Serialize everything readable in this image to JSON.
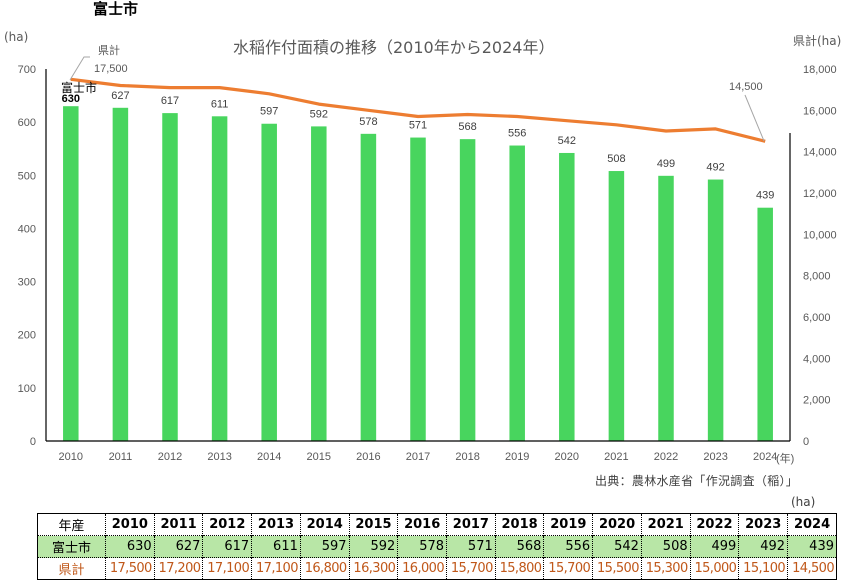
{
  "page": {
    "city_title": "富士市",
    "source": "出典：農林水産省「作況調査（稲）」",
    "table_unit": "(ha)"
  },
  "colors": {
    "bar": "#48D55E",
    "line": "#ED7D31",
    "city_row_bg": "#B8E6A6",
    "pref_text": "#C0581A"
  },
  "chart_data": {
    "type": "bar+line",
    "title": "水稲作付面積の推移（2010年から2024年）",
    "xlabel": "(年)",
    "ylabel_left": "(ha)",
    "ylabel_right": "県計(ha)",
    "categories": [
      "2010",
      "2011",
      "2012",
      "2013",
      "2014",
      "2015",
      "2016",
      "2017",
      "2018",
      "2019",
      "2020",
      "2021",
      "2022",
      "2023",
      "2024"
    ],
    "ylim_left": [
      0,
      700
    ],
    "ylim_right": [
      0,
      18000
    ],
    "yticks_left": [
      "0",
      "100",
      "200",
      "300",
      "400",
      "500",
      "600",
      "700"
    ],
    "yticks_right": [
      "0",
      "2,000",
      "4,000",
      "6,000",
      "8,000",
      "10,000",
      "12,000",
      "14,000",
      "16,000",
      "18,000"
    ],
    "series": [
      {
        "name": "富士市",
        "type": "bar",
        "axis": "left",
        "values": [
          630,
          627,
          617,
          611,
          597,
          592,
          578,
          571,
          568,
          556,
          542,
          508,
          499,
          492,
          439
        ]
      },
      {
        "name": "県計",
        "type": "line",
        "axis": "right",
        "values": [
          17500,
          17200,
          17100,
          17100,
          16800,
          16300,
          16000,
          15700,
          15800,
          15700,
          15500,
          15300,
          15000,
          15100,
          14500
        ]
      }
    ],
    "annotations": {
      "bar_series_label": "富士市",
      "line_series_label": "県計",
      "line_first_label": "17,500",
      "line_last_label": "14,500"
    },
    "grid": false,
    "legend": "none"
  },
  "table": {
    "header_label": "年産",
    "years": [
      "2010",
      "2011",
      "2012",
      "2013",
      "2014",
      "2015",
      "2016",
      "2017",
      "2018",
      "2019",
      "2020",
      "2021",
      "2022",
      "2023",
      "2024"
    ],
    "rows": [
      {
        "label": "富士市",
        "values": [
          "630",
          "627",
          "617",
          "611",
          "597",
          "592",
          "578",
          "571",
          "568",
          "556",
          "542",
          "508",
          "499",
          "492",
          "439"
        ]
      },
      {
        "label": "県計",
        "values": [
          "17,500",
          "17,200",
          "17,100",
          "17,100",
          "16,800",
          "16,300",
          "16,000",
          "15,700",
          "15,800",
          "15,700",
          "15,500",
          "15,300",
          "15,000",
          "15,100",
          "14,500"
        ]
      }
    ]
  }
}
